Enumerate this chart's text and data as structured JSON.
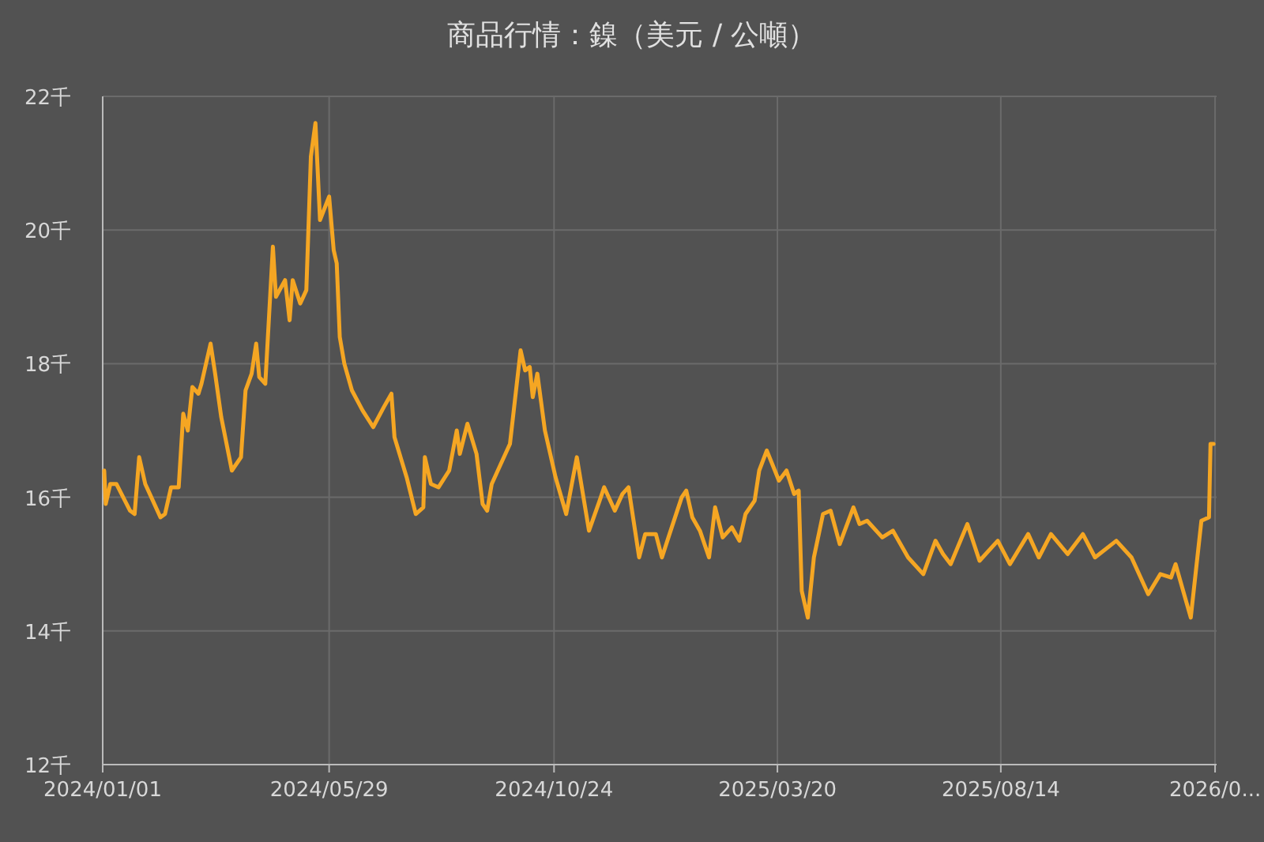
{
  "chart_data": {
    "type": "line",
    "title": "商品行情：鎳（美元 / 公噸）",
    "x": [
      "2024-01-02",
      "2024-01-03",
      "2024-01-06",
      "2024-01-10",
      "2024-01-19",
      "2024-01-22",
      "2024-01-25",
      "2024-01-29",
      "2024-02-01",
      "2024-02-08",
      "2024-02-11",
      "2024-02-15",
      "2024-02-20",
      "2024-02-23",
      "2024-02-26",
      "2024-02-29",
      "2024-03-04",
      "2024-03-06",
      "2024-03-12",
      "2024-03-15",
      "2024-03-19",
      "2024-03-26",
      "2024-04-01",
      "2024-04-04",
      "2024-04-08",
      "2024-04-11",
      "2024-04-13",
      "2024-04-17",
      "2024-04-22",
      "2024-04-24",
      "2024-04-30",
      "2024-05-03",
      "2024-05-05",
      "2024-05-10",
      "2024-05-14",
      "2024-05-17",
      "2024-05-20",
      "2024-05-23",
      "2024-05-29",
      "2024-06-01",
      "2024-06-03",
      "2024-06-05",
      "2024-06-08",
      "2024-06-13",
      "2024-06-20",
      "2024-06-27",
      "2024-07-04",
      "2024-07-09",
      "2024-07-11",
      "2024-07-19",
      "2024-07-25",
      "2024-07-30",
      "2024-07-31",
      "2024-08-04",
      "2024-08-09",
      "2024-08-16",
      "2024-08-21",
      "2024-08-23",
      "2024-08-28",
      "2024-09-03",
      "2024-09-07",
      "2024-09-10",
      "2024-09-13",
      "2024-09-19",
      "2024-09-25",
      "2024-10-02",
      "2024-10-05",
      "2024-10-08",
      "2024-10-10",
      "2024-10-13",
      "2024-10-18",
      "2024-10-25",
      "2024-11-01",
      "2024-11-08",
      "2024-11-16",
      "2024-11-23",
      "2024-11-26",
      "2024-12-03",
      "2024-12-08",
      "2024-12-12",
      "2024-12-19",
      "2024-12-23",
      "2024-12-30",
      "2025-01-03",
      "2025-01-08",
      "2025-01-16",
      "2025-01-19",
      "2025-01-23",
      "2025-01-28",
      "2025-02-03",
      "2025-02-07",
      "2025-02-12",
      "2025-02-18",
      "2025-02-23",
      "2025-02-27",
      "2025-03-05",
      "2025-03-08",
      "2025-03-13",
      "2025-03-21",
      "2025-03-26",
      "2025-03-31",
      "2025-04-03",
      "2025-04-05",
      "2025-04-09",
      "2025-04-13",
      "2025-04-19",
      "2025-04-24",
      "2025-04-30",
      "2025-05-09",
      "2025-05-13",
      "2025-05-18",
      "2025-05-28",
      "2025-06-04",
      "2025-06-14",
      "2025-06-24",
      "2025-07-02",
      "2025-07-07",
      "2025-07-12",
      "2025-07-23",
      "2025-07-31",
      "2025-08-12",
      "2025-08-20",
      "2025-09-01",
      "2025-09-08",
      "2025-09-16",
      "2025-09-27",
      "2025-10-07",
      "2025-10-15",
      "2025-10-29",
      "2025-11-08",
      "2025-11-19",
      "2025-11-27",
      "2025-12-04",
      "2025-12-07",
      "2025-12-17",
      "2025-12-24",
      "2025-12-29",
      "2025-12-30",
      "2026-01-01"
    ],
    "series": [
      {
        "color": "#f5a623",
        "values": [
          16.4,
          15.9,
          16.2,
          16.2,
          15.8,
          15.75,
          16.6,
          16.2,
          16.05,
          15.7,
          15.75,
          16.15,
          16.15,
          17.25,
          17.0,
          17.65,
          17.55,
          17.7,
          18.3,
          17.85,
          17.2,
          16.4,
          16.6,
          17.6,
          17.85,
          18.3,
          17.8,
          17.7,
          19.75,
          19.0,
          19.25,
          18.65,
          19.25,
          18.9,
          19.1,
          21.1,
          21.6,
          20.15,
          20.5,
          19.7,
          19.5,
          18.4,
          18.0,
          17.6,
          17.3,
          17.05,
          17.35,
          17.55,
          16.9,
          16.3,
          15.75,
          15.85,
          16.6,
          16.2,
          16.15,
          16.4,
          17.0,
          16.65,
          17.1,
          16.65,
          15.9,
          15.8,
          16.2,
          16.5,
          16.8,
          18.2,
          17.9,
          17.95,
          17.5,
          17.85,
          17.0,
          16.3,
          15.75,
          16.6,
          15.5,
          15.95,
          16.15,
          15.8,
          16.05,
          16.15,
          15.1,
          15.45,
          15.45,
          15.1,
          15.45,
          16.0,
          16.1,
          15.7,
          15.5,
          15.1,
          15.85,
          15.4,
          15.55,
          15.35,
          15.75,
          15.95,
          16.4,
          16.7,
          16.25,
          16.4,
          16.05,
          16.1,
          14.6,
          14.2,
          15.1,
          15.75,
          15.8,
          15.3,
          15.85,
          15.6,
          15.65,
          15.4,
          15.5,
          15.1,
          14.85,
          15.35,
          15.15,
          15.0,
          15.6,
          15.05,
          15.35,
          15.0,
          15.45,
          15.1,
          15.45,
          15.15,
          15.45,
          15.1,
          15.35,
          15.1,
          14.55,
          14.85,
          14.8,
          15.0,
          14.2,
          15.65,
          15.7,
          16.8,
          16.8
        ]
      }
    ],
    "xlim": [
      "2024-01-01",
      "2026-01-03"
    ],
    "xticks": [
      {
        "value": "2024-01-01",
        "label": "2024/01/01"
      },
      {
        "value": "2024-05-29",
        "label": "2024/05/29"
      },
      {
        "value": "2024-10-24",
        "label": "2024/10/24"
      },
      {
        "value": "2025-03-20",
        "label": "2025/03/20"
      },
      {
        "value": "2025-08-14",
        "label": "2025/08/14"
      },
      {
        "value": "2026-01-02",
        "label": "2026/0..."
      }
    ],
    "ylim": [
      12,
      22
    ],
    "yticks": [
      {
        "value": 12,
        "label": "12千"
      },
      {
        "value": 14,
        "label": "14千"
      },
      {
        "value": 16,
        "label": "16千"
      },
      {
        "value": 18,
        "label": "18千"
      },
      {
        "value": 20,
        "label": "20千"
      },
      {
        "value": 22,
        "label": "22千"
      }
    ],
    "grid": true,
    "marker": "none",
    "line_style": "solid"
  }
}
